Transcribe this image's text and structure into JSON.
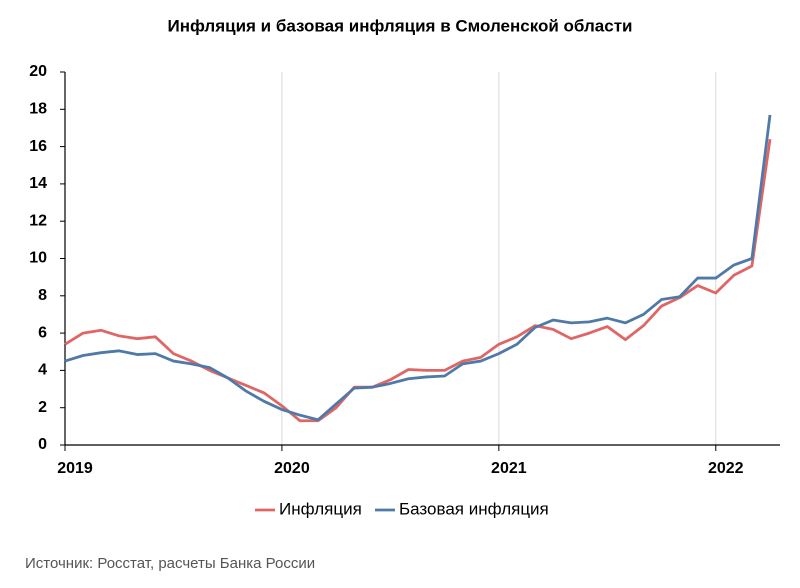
{
  "chart_data": {
    "type": "line",
    "title": "Инфляция и базовая инфляция в Смоленской области",
    "source": "Источник: Росстат, расчеты Банка России",
    "categories": [
      "2019",
      null,
      null,
      null,
      null,
      null,
      null,
      null,
      null,
      null,
      null,
      null,
      "2020",
      null,
      null,
      null,
      null,
      null,
      null,
      null,
      null,
      null,
      null,
      null,
      "2021",
      null,
      null,
      null,
      null,
      null,
      null,
      null,
      null,
      null,
      null,
      null,
      "2022",
      null,
      null,
      null
    ],
    "series": [
      {
        "name": "Инфляция",
        "color": "#e06666",
        "values": [
          5.4,
          6.0,
          6.15,
          5.85,
          5.7,
          5.8,
          4.9,
          4.5,
          4.0,
          3.6,
          3.2,
          2.8,
          2.1,
          1.3,
          1.3,
          2.0,
          3.1,
          3.1,
          3.5,
          4.05,
          4.0,
          4.0,
          4.5,
          4.7,
          5.4,
          5.8,
          6.4,
          6.2,
          5.7,
          6.0,
          6.35,
          5.65,
          6.4,
          7.45,
          7.9,
          8.55,
          8.15,
          9.1,
          9.6,
          16.4
        ]
      },
      {
        "name": "Базовая инфляция",
        "color": "#4f7aa8",
        "values": [
          4.5,
          4.8,
          4.95,
          5.05,
          4.85,
          4.9,
          4.5,
          4.35,
          4.15,
          3.6,
          2.9,
          2.35,
          1.9,
          1.6,
          1.35,
          2.2,
          3.05,
          3.1,
          3.3,
          3.55,
          3.65,
          3.7,
          4.35,
          4.5,
          4.9,
          5.4,
          6.3,
          6.7,
          6.55,
          6.6,
          6.8,
          6.55,
          7.0,
          7.8,
          7.95,
          8.95,
          8.95,
          9.65,
          10.0,
          17.7
        ]
      }
    ],
    "ylim": [
      0,
      20
    ],
    "yticks": [
      0,
      2,
      4,
      6,
      8,
      10,
      12,
      14,
      16,
      18,
      20
    ],
    "grid": "x",
    "legend": "bottom"
  }
}
